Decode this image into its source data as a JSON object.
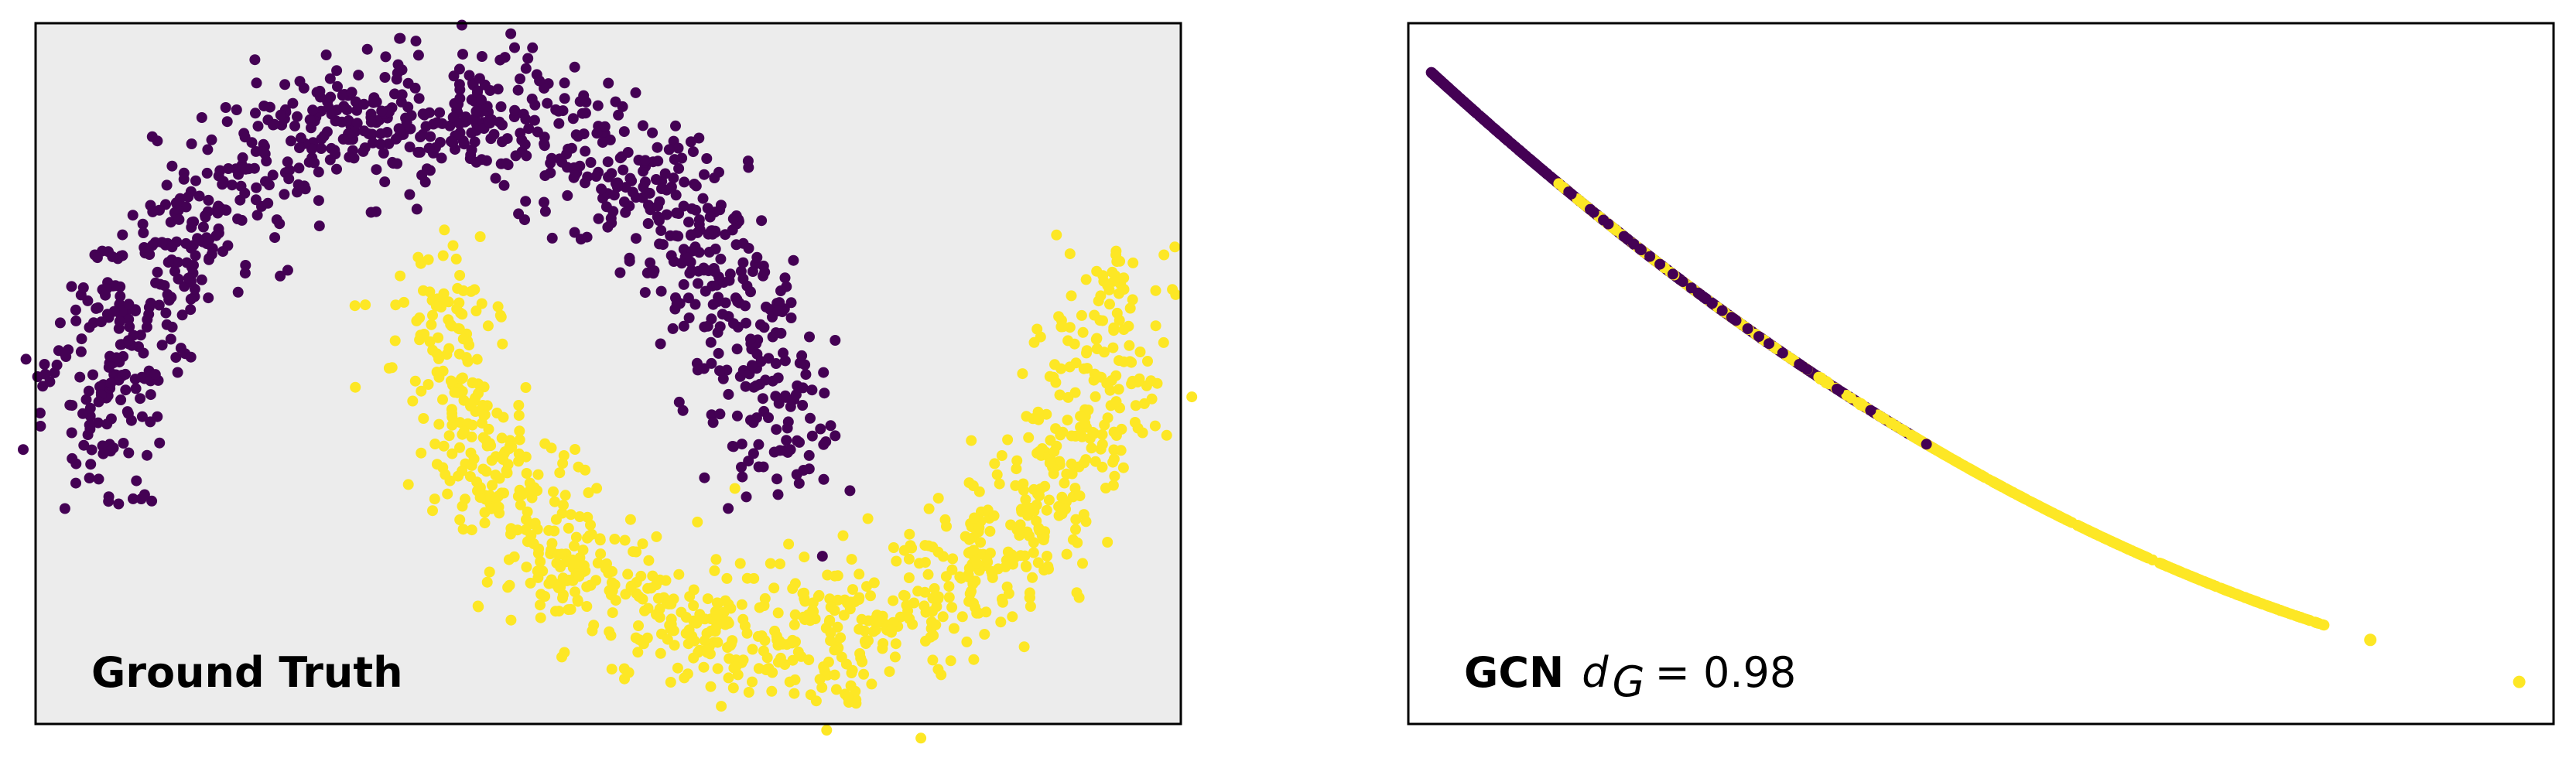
{
  "colors": {
    "class0": "#440154",
    "class1": "#fde725",
    "panel_bg_left": "#ececec",
    "panel_bg_right": "#ffffff",
    "frame": "#000000"
  },
  "chart_data": [
    {
      "type": "scatter",
      "title": "Ground Truth",
      "xlabel": "",
      "ylabel": "",
      "grid": false,
      "legend": "none",
      "xlim": [
        -1.2,
        2.2
      ],
      "ylim": [
        -0.75,
        1.25
      ],
      "series": [
        {
          "color": "#440154",
          "shape": "upper moon arc (center 0,0, radius 1, angles 0..180 deg)",
          "n_points": 1000,
          "noise": 0.1
        },
        {
          "color": "#fde725",
          "shape": "lower moon arc (center 1,0.5, radius 1, angles 180..360 deg)",
          "n_points": 1000,
          "noise": 0.1
        }
      ]
    },
    {
      "type": "scatter",
      "title": "GCN",
      "annotation": {
        "var": "d",
        "sub": "G",
        "equals": "= 0.98"
      },
      "xlabel": "",
      "ylabel": "",
      "grid": false,
      "legend": "none",
      "xlim": [
        0,
        1
      ],
      "ylim": [
        0,
        1
      ],
      "series": [
        {
          "color": "#440154",
          "shape": "points on a single concave curve, upper-left segment",
          "x_range": [
            0.02,
            0.46
          ]
        },
        {
          "color": "#fde725",
          "shape": "points on the same curve, overlapping then extending to lower-right",
          "x_range": [
            0.13,
            0.97
          ]
        }
      ]
    }
  ]
}
